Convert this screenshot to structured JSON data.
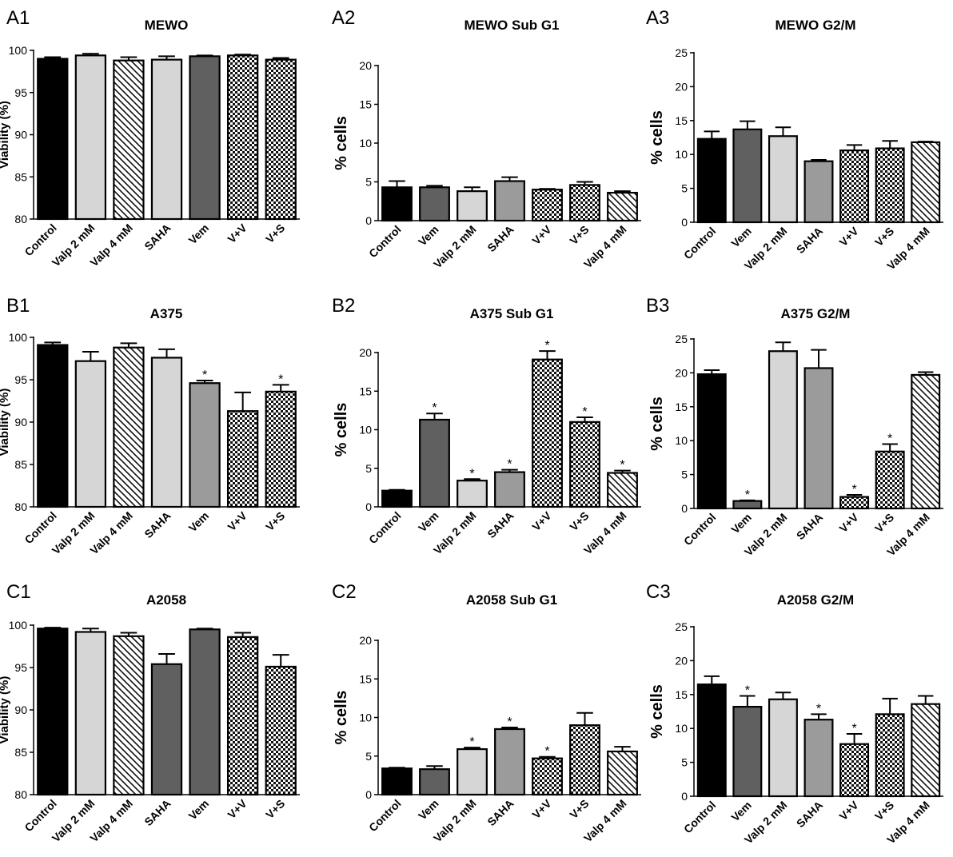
{
  "colors": {
    "black": "#000000",
    "light": "#d6d6d6",
    "mid": "#9b9b9b",
    "dark": "#606060",
    "white": "#ffffff"
  },
  "chart_data": [
    {
      "id": "A1",
      "panel_label": "A1",
      "title": "MEWO",
      "type": "bar",
      "ylabel": "Viability (%)",
      "ylim": [
        80,
        100
      ],
      "yticks": [
        80,
        85,
        90,
        95,
        100
      ],
      "categories": [
        "Control",
        "Valp 2 mM",
        "Valp 4 mM",
        "SAHA",
        "Vem",
        "V+V",
        "V+S"
      ],
      "values": [
        99.0,
        99.4,
        98.8,
        98.9,
        99.3,
        99.4,
        98.9
      ],
      "errors": [
        0.2,
        0.2,
        0.4,
        0.4,
        0.1,
        0.1,
        0.2
      ],
      "fills": [
        "black",
        "light",
        "hatch",
        "light",
        "dark",
        "checker",
        "checker"
      ],
      "significant": [
        false,
        false,
        false,
        false,
        false,
        false,
        false
      ]
    },
    {
      "id": "A2",
      "panel_label": "A2",
      "title": "MEWO Sub G1",
      "type": "bar",
      "ylabel": "% cells",
      "ylim": [
        0,
        20
      ],
      "yticks": [
        0,
        5,
        10,
        15,
        20
      ],
      "categories": [
        "Control",
        "Vem",
        "Valp 2 mM",
        "SAHA",
        "V+V",
        "V+S",
        "Valp 4 mM"
      ],
      "values": [
        4.3,
        4.3,
        3.8,
        5.1,
        4.0,
        4.6,
        3.6
      ],
      "errors": [
        0.8,
        0.2,
        0.5,
        0.5,
        0.1,
        0.4,
        0.2
      ],
      "fills": [
        "black",
        "dark",
        "light",
        "mid",
        "checker",
        "checker",
        "hatch"
      ],
      "significant": [
        false,
        false,
        false,
        false,
        false,
        false,
        false
      ]
    },
    {
      "id": "A3",
      "panel_label": "A3",
      "title": "MEWO G2/M",
      "type": "bar",
      "ylabel": "% cells",
      "ylim": [
        0,
        25
      ],
      "yticks": [
        0,
        5,
        10,
        15,
        20,
        25
      ],
      "categories": [
        "Control",
        "Vem",
        "Valp 2 mM",
        "SAHA",
        "V+V",
        "V+S",
        "Valp 4 mM"
      ],
      "values": [
        12.3,
        13.7,
        12.7,
        9.0,
        10.6,
        10.9,
        11.8
      ],
      "errors": [
        1.1,
        1.2,
        1.3,
        0.2,
        0.8,
        1.1,
        0.1
      ],
      "fills": [
        "black",
        "dark",
        "light",
        "mid",
        "checker",
        "checker",
        "hatch"
      ],
      "significant": [
        false,
        false,
        false,
        false,
        false,
        false,
        false
      ]
    },
    {
      "id": "B1",
      "panel_label": "B1",
      "title": "A375",
      "type": "bar",
      "ylabel": "Viability (%)",
      "ylim": [
        80,
        100
      ],
      "yticks": [
        80,
        85,
        90,
        95,
        100
      ],
      "categories": [
        "Control",
        "Valp 2 mM",
        "Valp 4 mM",
        "SAHA",
        "Vem",
        "V+V",
        "V+S"
      ],
      "values": [
        99.1,
        97.2,
        98.8,
        97.6,
        94.6,
        91.3,
        93.6
      ],
      "errors": [
        0.3,
        1.1,
        0.5,
        1.0,
        0.3,
        2.2,
        0.8
      ],
      "fills": [
        "black",
        "light",
        "hatch",
        "light",
        "mid",
        "checker",
        "checker"
      ],
      "significant": [
        false,
        false,
        false,
        false,
        true,
        false,
        true
      ]
    },
    {
      "id": "B2",
      "panel_label": "B2",
      "title": "A375 Sub G1",
      "type": "bar",
      "ylabel": "% cells",
      "ylim": [
        0,
        20
      ],
      "yticks": [
        0,
        5,
        10,
        15,
        20
      ],
      "categories": [
        "Control",
        "Vem",
        "Valp 2 mM",
        "SAHA",
        "V+V",
        "V+S",
        "Valp 4 mM"
      ],
      "values": [
        2.1,
        11.3,
        3.4,
        4.5,
        19.1,
        11.0,
        4.4
      ],
      "errors": [
        0.1,
        0.8,
        0.2,
        0.3,
        1.1,
        0.6,
        0.3
      ],
      "fills": [
        "black",
        "dark",
        "light",
        "mid",
        "checker",
        "checker",
        "hatch"
      ],
      "significant": [
        false,
        true,
        true,
        true,
        true,
        true,
        true
      ]
    },
    {
      "id": "B3",
      "panel_label": "B3",
      "title": "A375 G2/M",
      "type": "bar",
      "ylabel": "% cells",
      "ylim": [
        0,
        25
      ],
      "yticks": [
        0,
        5,
        10,
        15,
        20,
        25
      ],
      "categories": [
        "Control",
        "Vem",
        "Valp 2 mM",
        "SAHA",
        "V+V",
        "V+S",
        "Valp 4 mM"
      ],
      "values": [
        19.8,
        1.1,
        23.2,
        20.7,
        1.7,
        8.4,
        19.7
      ],
      "errors": [
        0.6,
        0.1,
        1.3,
        2.7,
        0.3,
        1.1,
        0.4
      ],
      "fills": [
        "black",
        "dark",
        "light",
        "mid",
        "checker",
        "checker",
        "hatch"
      ],
      "significant": [
        false,
        true,
        false,
        false,
        true,
        true,
        false
      ]
    },
    {
      "id": "C1",
      "panel_label": "C1",
      "title": "A2058",
      "type": "bar",
      "ylabel": "Viability (%)",
      "ylim": [
        80,
        100
      ],
      "yticks": [
        80,
        85,
        90,
        95,
        100
      ],
      "categories": [
        "Control",
        "Valp 2 mM",
        "Valp 4 mM",
        "SAHA",
        "Vem",
        "V+V",
        "V+S"
      ],
      "values": [
        99.6,
        99.2,
        98.7,
        95.4,
        99.5,
        98.6,
        95.1
      ],
      "errors": [
        0.1,
        0.4,
        0.4,
        1.2,
        0.1,
        0.5,
        1.4
      ],
      "fills": [
        "black",
        "light",
        "hatch",
        "dark",
        "dark",
        "checker",
        "checker"
      ],
      "significant": [
        false,
        false,
        false,
        false,
        false,
        false,
        false
      ]
    },
    {
      "id": "C2",
      "panel_label": "C2",
      "title": "A2058 Sub G1",
      "type": "bar",
      "ylabel": "% cells",
      "ylim": [
        0,
        20
      ],
      "yticks": [
        0,
        5,
        10,
        15,
        20
      ],
      "categories": [
        "Control",
        "Vem",
        "Valp 2 mM",
        "SAHA",
        "V+V",
        "V+S",
        "Valp 4 mM"
      ],
      "values": [
        3.4,
        3.3,
        5.9,
        8.5,
        4.7,
        9.0,
        5.6
      ],
      "errors": [
        0.1,
        0.4,
        0.2,
        0.2,
        0.2,
        1.6,
        0.6
      ],
      "fills": [
        "black",
        "dark",
        "light",
        "mid",
        "checker",
        "checker",
        "hatch"
      ],
      "significant": [
        false,
        false,
        true,
        true,
        true,
        false,
        false
      ]
    },
    {
      "id": "C3",
      "panel_label": "C3",
      "title": "A2058 G2/M",
      "type": "bar",
      "ylabel": "% cells",
      "ylim": [
        0,
        25
      ],
      "yticks": [
        0,
        5,
        10,
        15,
        20,
        25
      ],
      "categories": [
        "Control",
        "Vem",
        "Valp 2 mM",
        "SAHA",
        "V+V",
        "V+S",
        "Valp 4 mM"
      ],
      "values": [
        16.5,
        13.2,
        14.3,
        11.3,
        7.7,
        12.1,
        13.6
      ],
      "errors": [
        1.2,
        1.6,
        1.0,
        0.8,
        1.5,
        2.3,
        1.2
      ],
      "fills": [
        "black",
        "dark",
        "light",
        "mid",
        "checker",
        "checker",
        "hatch"
      ],
      "significant": [
        false,
        true,
        false,
        true,
        true,
        false,
        false
      ]
    }
  ],
  "significance_marker": "*"
}
